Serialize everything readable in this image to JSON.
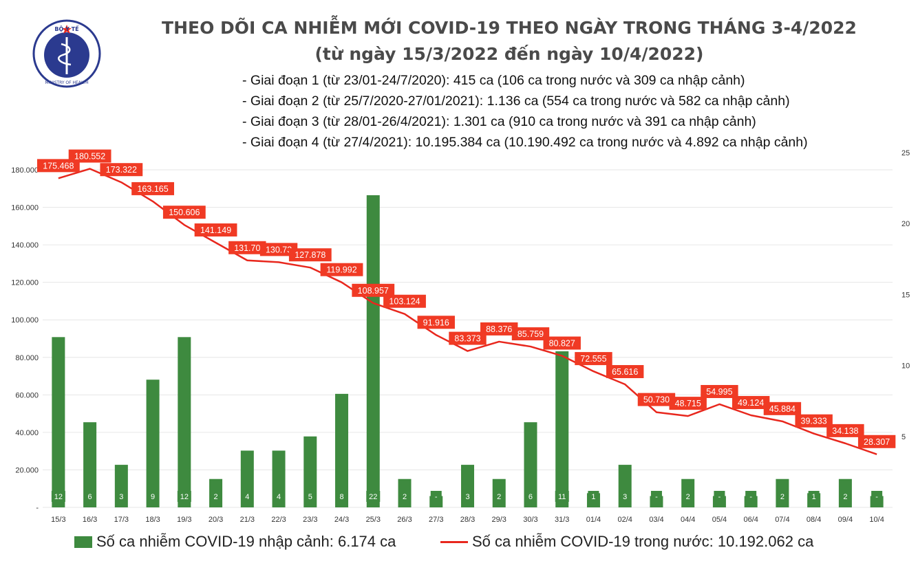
{
  "header": {
    "title_line1": "THEO DÕI CA NHIỄM MỚI COVID-19 THEO NGÀY TRONG THÁNG 3-4/2022",
    "title_line2": "(từ ngày 15/3/2022 đến ngày 10/4/2022)",
    "notes": [
      "- Giai đoạn 1 (từ 23/01-24/7/2020): 415 ca (106 ca trong nước và 309 ca nhập cảnh)",
      "- Giai đoạn 2 (từ 25/7/2020-27/01/2021): 1.136 ca (554 ca trong nước và 582 ca nhập cảnh)",
      "- Giai đoạn 3 (từ 28/01-26/4/2021): 1.301 ca (910 ca trong nước và 391 ca nhập cảnh)",
      "- Giai đoạn 4 (từ 27/4/2021): 10.195.384 ca (10.190.492 ca trong nước và 4.892 ca nhập cảnh)"
    ]
  },
  "logo": {
    "top_text": "BỘ Y TẾ",
    "bottom_text": "MINISTRY OF HEALTH",
    "icon": "caduceus-icon"
  },
  "legend": {
    "bar_label": "Số ca nhiễm COVID-19 nhập cảnh: 6.174 ca",
    "line_label": "Số ca nhiễm COVID-19 trong nước: 10.192.062 ca"
  },
  "colors": {
    "bar": "#3e8a3f",
    "line": "#e8271d",
    "label_bg": "#f03a24",
    "title": "#4a4a4a"
  },
  "chart_data": {
    "type": "bar+line",
    "categories": [
      "15/3",
      "16/3",
      "17/3",
      "18/3",
      "19/3",
      "20/3",
      "21/3",
      "22/3",
      "23/3",
      "24/3",
      "25/3",
      "26/3",
      "27/3",
      "28/3",
      "29/3",
      "30/3",
      "31/3",
      "01/4",
      "02/4",
      "03/4",
      "04/4",
      "05/4",
      "06/4",
      "07/4",
      "08/4",
      "09/4",
      "10/4"
    ],
    "series": [
      {
        "name": "Số ca nhiễm COVID-19 nhập cảnh: 6.174 ca",
        "type": "bar",
        "axis": "right",
        "values": [
          12,
          6,
          3,
          9,
          12,
          2,
          4,
          4,
          5,
          8,
          22,
          2,
          0,
          3,
          2,
          6,
          11,
          1,
          3,
          0,
          2,
          0,
          0,
          2,
          1,
          2,
          0
        ],
        "labels": [
          "12",
          "6",
          "3",
          "9",
          "12",
          "2",
          "4",
          "4",
          "5",
          "8",
          "22",
          "2",
          "-",
          "3",
          "2",
          "6",
          "11",
          "1",
          "3",
          "-",
          "2",
          "-",
          "-",
          "2",
          "1",
          "2",
          "-"
        ]
      },
      {
        "name": "Số ca nhiễm COVID-19 trong nước: 10.192.062 ca",
        "type": "line",
        "axis": "left",
        "values": [
          175468,
          180552,
          173322,
          163165,
          150606,
          141149,
          131700,
          130731,
          127878,
          119992,
          108957,
          103124,
          91916,
          83373,
          88376,
          85759,
          80827,
          72555,
          65616,
          50730,
          48715,
          54995,
          49124,
          45884,
          39333,
          34138,
          28307
        ],
        "labels": [
          "175.468",
          "180.552",
          "173.322",
          "163.165",
          "150.606",
          "141.149",
          "131.70",
          "130.73",
          "127.878",
          "119.992",
          "108.957",
          "103.124",
          "91.916",
          "83.373",
          "88.376",
          "85.759",
          "80.827",
          "72.555",
          "65.616",
          "50.730",
          "48.715",
          "54.995",
          "49.124",
          "45.884",
          "39.333",
          "34.138",
          "28.307"
        ]
      }
    ],
    "y_left": {
      "ticks": [
        "-",
        "20.000",
        "40.000",
        "60.000",
        "80.000",
        "100.000",
        "120.000",
        "140.000",
        "160.000",
        "180.000"
      ],
      "range": [
        0,
        180000
      ]
    },
    "y_right": {
      "ticks": [
        "5",
        "10",
        "15",
        "20",
        "25"
      ],
      "range": [
        0,
        25
      ]
    },
    "grid": true,
    "legend_position": "bottom"
  }
}
